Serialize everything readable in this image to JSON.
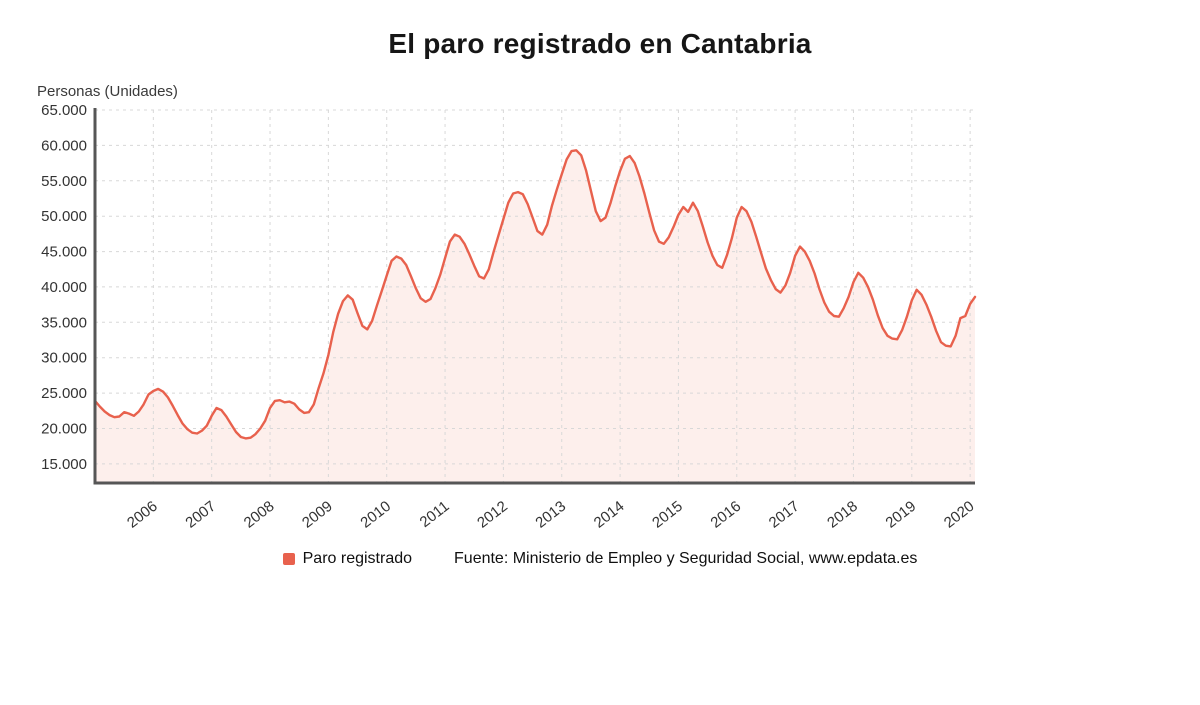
{
  "title": "El paro registrado en Cantabria",
  "y_axis_title": "Personas (Unidades)",
  "legend": {
    "series_label": "Paro registrado",
    "source": "Fuente: Ministerio de Empleo y Seguridad Social, www.epdata.es"
  },
  "colors": {
    "line": "#e8614d",
    "fill": "#fdefec",
    "grid": "#d8d8d8",
    "axis": "#565656",
    "text": "#333333"
  },
  "chart_data": {
    "type": "area",
    "title": "El paro registrado en Cantabria",
    "ylabel": "Personas (Unidades)",
    "ylim": [
      15000,
      65000
    ],
    "grid": true,
    "legend_position": "bottom",
    "frequency": "monthly",
    "start": "2005-01",
    "end": "2020-02",
    "y_ticks": [
      15000,
      20000,
      25000,
      30000,
      35000,
      40000,
      45000,
      50000,
      55000,
      60000,
      65000
    ],
    "x_tick_labels": [
      "2006",
      "2007",
      "2008",
      "2009",
      "2010",
      "2011",
      "2012",
      "2013",
      "2014",
      "2015",
      "2016",
      "2017",
      "2018",
      "2019",
      "2020"
    ],
    "series": [
      {
        "name": "Paro registrado",
        "values": [
          23900,
          23100,
          22400,
          21900,
          21600,
          21700,
          22300,
          22100,
          21800,
          22400,
          23400,
          24800,
          25300,
          25600,
          25200,
          24400,
          23200,
          21900,
          20700,
          19900,
          19400,
          19300,
          19700,
          20400,
          21800,
          22900,
          22600,
          21700,
          20600,
          19500,
          18800,
          18600,
          18700,
          19200,
          20000,
          21100,
          22900,
          23900,
          24000,
          23700,
          23800,
          23500,
          22700,
          22200,
          22300,
          23400,
          25700,
          27800,
          30400,
          33600,
          36200,
          38000,
          38800,
          38200,
          36300,
          34500,
          34000,
          35200,
          37400,
          39500,
          41600,
          43700,
          44300,
          44000,
          43100,
          41500,
          39800,
          38400,
          37900,
          38300,
          39800,
          41700,
          44100,
          46400,
          47400,
          47100,
          46100,
          44600,
          43000,
          41500,
          41200,
          42500,
          45000,
          47300,
          49600,
          51900,
          53200,
          53400,
          53100,
          51700,
          49800,
          47900,
          47400,
          48800,
          51500,
          53800,
          55900,
          58000,
          59200,
          59300,
          58600,
          56500,
          53600,
          50700,
          49300,
          49800,
          51800,
          54200,
          56400,
          58100,
          58500,
          57500,
          55600,
          53200,
          50500,
          48000,
          46400,
          46100,
          47000,
          48500,
          50200,
          51300,
          50600,
          51900,
          50700,
          48600,
          46300,
          44400,
          43100,
          42700,
          44500,
          46900,
          49800,
          51300,
          50700,
          49200,
          47100,
          44800,
          42600,
          41000,
          39700,
          39200,
          40200,
          42000,
          44400,
          45700,
          45000,
          43700,
          41900,
          39700,
          37800,
          36500,
          35900,
          35800,
          37000,
          38600,
          40700,
          42000,
          41300,
          40000,
          38200,
          36000,
          34200,
          33100,
          32700,
          32600,
          33900,
          35800,
          38100,
          39600,
          38900,
          37500,
          35800,
          33800,
          32200,
          31700,
          31600,
          33100,
          35600,
          35900,
          37600,
          38600
        ]
      }
    ]
  }
}
